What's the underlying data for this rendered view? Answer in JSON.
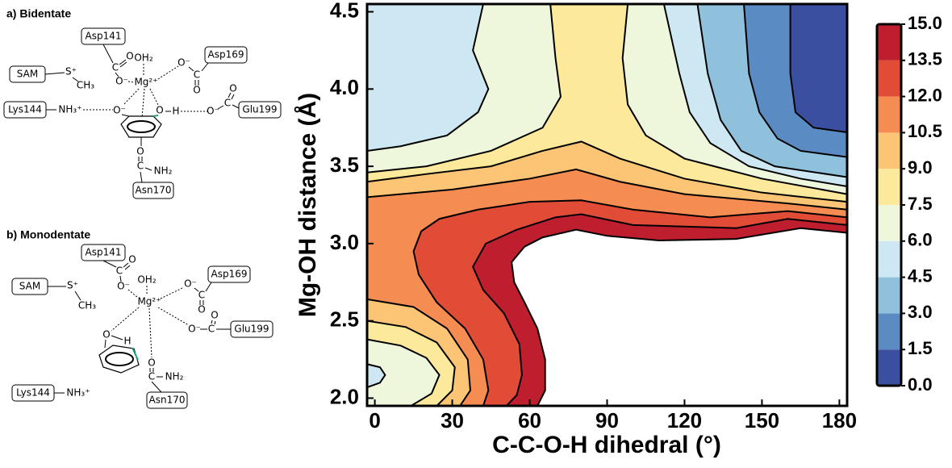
{
  "diagrams": [
    {
      "title": "a) Bidentate",
      "labels": [
        "Asp141",
        "C",
        "O",
        "O⁻",
        "OH₂",
        "Mg²⁺",
        "O⁻",
        "C",
        "O",
        "Asp169",
        "SAM",
        "S⁺",
        "CH₃",
        "Lys144",
        "NH₃⁺",
        "O⁻",
        "O",
        "H",
        "O⁻",
        "C",
        "O",
        "Glu199",
        "O",
        "C",
        "NH₂",
        "Asn170"
      ]
    },
    {
      "title": "b) Monodentate",
      "labels": [
        "Asp141",
        "C",
        "O",
        "O⁻",
        "OH₂",
        "Mg²⁺",
        "O⁻",
        "C",
        "O",
        "Asp169",
        "SAM",
        "S⁺",
        "CH₃",
        "O⁻",
        "C",
        "O",
        "Glu199",
        "O",
        "H",
        "O",
        "C",
        "NH₂",
        "Asn170",
        "Lys144",
        "NH₃⁺"
      ]
    }
  ],
  "chart_data": {
    "type": "contour",
    "xlabel": "C-C-O-H dihedral (°)",
    "ylabel": "Mg-OH distance (Å)",
    "xlim": [
      -3,
      183
    ],
    "ylim": [
      1.95,
      4.55
    ],
    "xticks": [
      0,
      30,
      60,
      90,
      120,
      150,
      180
    ],
    "yticks": [
      {
        "value": 2,
        "label": "2.0"
      },
      2.5,
      {
        "value": 3,
        "label": "3.0"
      },
      3.5,
      {
        "value": 4,
        "label": "4.0"
      },
      4.5
    ],
    "colorbar": {
      "zlim": [
        0,
        15
      ],
      "ticks": [
        {
          "value": 0,
          "label": "0.0"
        },
        1.5,
        {
          "value": 3,
          "label": "3.0"
        },
        4.5,
        {
          "value": 6,
          "label": "6.0"
        },
        7.5,
        {
          "value": 9,
          "label": "9.0"
        },
        10.5,
        {
          "value": 12,
          "label": "12.0"
        },
        13.5,
        {
          "value": 15,
          "label": "15.0"
        }
      ],
      "colors": [
        "#3b4fa0",
        "#5a8bc3",
        "#8fc1dd",
        "#cde8f2",
        "#eef6dc",
        "#fde99b",
        "#fcc576",
        "#f58c52",
        "#e14c37",
        "#be1e2d"
      ]
    },
    "line_color": "#000000",
    "contours": [
      {
        "level": 15,
        "x": [
          183,
          165,
          140,
          110,
          90,
          78,
          65,
          58,
          53,
          54,
          58,
          63,
          66,
          66,
          63
        ],
        "y": [
          3.07,
          3.1,
          3.03,
          3.02,
          3.05,
          3.09,
          3.04,
          2.98,
          2.88,
          2.75,
          2.62,
          2.45,
          2.25,
          2.05,
          1.95
        ]
      },
      {
        "level": 13.5,
        "x": [
          183,
          160,
          140,
          100,
          80,
          70,
          55,
          43,
          38,
          42,
          50,
          56,
          57,
          55,
          51
        ],
        "y": [
          3.12,
          3.16,
          3.1,
          3.12,
          3.19,
          3.17,
          3.09,
          3.0,
          2.85,
          2.7,
          2.55,
          2.35,
          2.15,
          2.02,
          1.95
        ]
      },
      {
        "level": 12,
        "x": [
          183,
          160,
          130,
          100,
          80,
          60,
          40,
          25,
          18,
          15,
          17,
          24,
          35,
          42,
          44,
          42
        ],
        "y": [
          3.17,
          3.21,
          3.17,
          3.22,
          3.28,
          3.27,
          3.22,
          3.16,
          3.08,
          2.95,
          2.8,
          2.62,
          2.45,
          2.25,
          2.05,
          1.95
        ]
      },
      {
        "level": 10.5,
        "x": [
          183,
          160,
          120,
          95,
          78,
          60,
          30,
          -3
        ],
        "y": [
          3.22,
          3.26,
          3.32,
          3.4,
          3.48,
          3.42,
          3.35,
          3.3
        ]
      },
      {
        "level": 10.5,
        "x": [
          -3,
          15,
          28,
          36,
          37,
          33
        ],
        "y": [
          2.64,
          2.59,
          2.45,
          2.25,
          2.05,
          1.95
        ]
      },
      {
        "level": 9,
        "x": [
          183,
          150,
          120,
          95,
          80,
          65,
          45,
          20,
          -3
        ],
        "y": [
          3.27,
          3.33,
          3.42,
          3.55,
          3.66,
          3.6,
          3.5,
          3.45,
          3.4
        ]
      },
      {
        "level": 9,
        "x": [
          -3,
          12,
          24,
          31,
          30,
          24
        ],
        "y": [
          2.5,
          2.46,
          2.36,
          2.2,
          2.05,
          1.95
        ]
      },
      {
        "level": 7.5,
        "x": [
          183,
          150,
          120,
          105,
          98,
          96,
          98
        ],
        "y": [
          3.32,
          3.42,
          3.55,
          3.7,
          3.9,
          4.2,
          4.55
        ]
      },
      {
        "level": 7.5,
        "x": [
          68,
          70,
          72,
          65,
          45,
          20,
          -3
        ],
        "y": [
          4.55,
          4.2,
          3.95,
          3.75,
          3.6,
          3.5,
          3.46
        ]
      },
      {
        "level": 7.5,
        "x": [
          -3,
          10,
          20,
          25,
          22,
          14
        ],
        "y": [
          2.38,
          2.34,
          2.26,
          2.15,
          2.03,
          1.95
        ]
      },
      {
        "level": 6,
        "x": [
          183,
          165,
          145,
          130,
          122,
          118,
          112
        ],
        "y": [
          3.37,
          3.42,
          3.5,
          3.65,
          3.85,
          4.1,
          4.55
        ]
      },
      {
        "level": 6,
        "x": [
          42,
          38,
          44,
          40,
          28,
          10,
          -3
        ],
        "y": [
          4.55,
          4.25,
          4.0,
          3.85,
          3.7,
          3.63,
          3.6
        ]
      },
      {
        "level": 6,
        "x": [
          -3,
          2,
          4,
          2,
          -3
        ],
        "y": [
          2.22,
          2.2,
          2.15,
          2.1,
          2.07
        ]
      },
      {
        "level": 4.5,
        "x": [
          183,
          155,
          142,
          134,
          129,
          125
        ],
        "y": [
          3.43,
          3.5,
          3.6,
          3.8,
          4.1,
          4.55
        ]
      },
      {
        "level": 3,
        "x": [
          183,
          165,
          156,
          149,
          145,
          143
        ],
        "y": [
          3.56,
          3.6,
          3.68,
          3.85,
          4.1,
          4.55
        ]
      },
      {
        "level": 1.5,
        "x": [
          183,
          170,
          163,
          161,
          161
        ],
        "y": [
          3.72,
          3.75,
          3.85,
          4.1,
          4.55
        ]
      }
    ]
  }
}
